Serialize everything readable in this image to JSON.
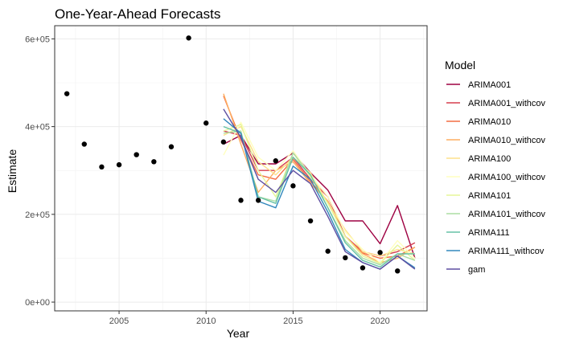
{
  "chart_data": {
    "type": "line",
    "title": "One-Year-Ahead Forecasts",
    "xlabel": "Year",
    "ylabel": "Estimate",
    "xlim": [
      2001.3,
      2022.7
    ],
    "ylim": [
      -20000,
      630000
    ],
    "x_ticks": [
      2005,
      2010,
      2015,
      2020
    ],
    "x_tick_labels": [
      "2005",
      "2010",
      "2015",
      "2020"
    ],
    "y_ticks": [
      0,
      200000,
      400000,
      600000
    ],
    "y_tick_labels": [
      "0e+00",
      "2e+05",
      "4e+05",
      "6e+05"
    ],
    "grid": true,
    "legend": {
      "title": "Model",
      "position": "right"
    },
    "observed": {
      "x": [
        2002,
        2003,
        2004,
        2005,
        2006,
        2007,
        2008,
        2009,
        2010,
        2011,
        2012,
        2013,
        2014,
        2015,
        2016,
        2017,
        2018,
        2019,
        2020,
        2021
      ],
      "y": [
        475000,
        360000,
        308000,
        313000,
        336000,
        320000,
        354000,
        602000,
        408000,
        365000,
        232000,
        232000,
        322000,
        265000,
        185000,
        116000,
        101000,
        78000,
        113000,
        71000
      ]
    },
    "series": [
      {
        "name": "ARIMA001",
        "color": "#9E0142",
        "x": [
          2011,
          2012,
          2013,
          2014,
          2015,
          2016,
          2017,
          2018,
          2019,
          2020,
          2021,
          2022
        ],
        "y": [
          360000,
          380000,
          315000,
          315000,
          340000,
          295000,
          255000,
          185000,
          185000,
          133000,
          220000,
          100000
        ]
      },
      {
        "name": "ARIMA001_withcov",
        "color": "#D53E4F",
        "x": [
          2011,
          2012,
          2013,
          2014,
          2015,
          2016,
          2017,
          2018,
          2019,
          2020,
          2021,
          2022
        ],
        "y": [
          390000,
          380000,
          300000,
          300000,
          330000,
          280000,
          240000,
          150000,
          115000,
          105000,
          115000,
          135000
        ]
      },
      {
        "name": "ARIMA010",
        "color": "#F46D43",
        "x": [
          2011,
          2012,
          2013,
          2014,
          2015,
          2016,
          2017,
          2018,
          2019,
          2020,
          2021,
          2022
        ],
        "y": [
          470000,
          370000,
          290000,
          280000,
          325000,
          275000,
          230000,
          150000,
          112000,
          100000,
          105000,
          125000
        ]
      },
      {
        "name": "ARIMA010_withcov",
        "color": "#FDAE61",
        "x": [
          2011,
          2012,
          2013,
          2014,
          2015,
          2016,
          2017,
          2018,
          2019,
          2020,
          2021,
          2022
        ],
        "y": [
          475000,
          360000,
          250000,
          300000,
          320000,
          270000,
          230000,
          150000,
          110000,
          90000,
          100000,
          125000
        ]
      },
      {
        "name": "ARIMA100",
        "color": "#FEE08B",
        "x": [
          2011,
          2012,
          2013,
          2014,
          2015,
          2016,
          2017,
          2018,
          2019,
          2020,
          2021,
          2022
        ],
        "y": [
          380000,
          400000,
          320000,
          290000,
          330000,
          295000,
          225000,
          165000,
          115000,
          105000,
          120000,
          110000
        ]
      },
      {
        "name": "ARIMA100_withcov",
        "color": "#FFFFBF",
        "x": [
          2011,
          2012,
          2013,
          2014,
          2015,
          2016,
          2017,
          2018,
          2019,
          2020,
          2021,
          2022
        ],
        "y": [
          335000,
          410000,
          330000,
          300000,
          345000,
          290000,
          240000,
          160000,
          120000,
          90000,
          140000,
          100000
        ]
      },
      {
        "name": "ARIMA101",
        "color": "#E6F598",
        "x": [
          2011,
          2012,
          2013,
          2014,
          2015,
          2016,
          2017,
          2018,
          2019,
          2020,
          2021,
          2022
        ],
        "y": [
          390000,
          405000,
          300000,
          240000,
          340000,
          285000,
          225000,
          150000,
          105000,
          88000,
          130000,
          95000
        ]
      },
      {
        "name": "ARIMA101_withcov",
        "color": "#ABDDA4",
        "x": [
          2011,
          2012,
          2013,
          2014,
          2015,
          2016,
          2017,
          2018,
          2019,
          2020,
          2021,
          2022
        ],
        "y": [
          385000,
          390000,
          240000,
          230000,
          340000,
          290000,
          215000,
          140000,
          100000,
          85000,
          110000,
          95000
        ]
      },
      {
        "name": "ARIMA111",
        "color": "#66C2A5",
        "x": [
          2011,
          2012,
          2013,
          2014,
          2015,
          2016,
          2017,
          2018,
          2019,
          2020,
          2021,
          2022
        ],
        "y": [
          400000,
          385000,
          240000,
          225000,
          330000,
          290000,
          215000,
          135000,
          95000,
          80000,
          110000,
          110000
        ]
      },
      {
        "name": "ARIMA111_withcov",
        "color": "#3288BD",
        "x": [
          2011,
          2012,
          2013,
          2014,
          2015,
          2016,
          2017,
          2018,
          2019,
          2020,
          2021,
          2022
        ],
        "y": [
          418000,
          385000,
          230000,
          215000,
          310000,
          280000,
          205000,
          120000,
          90000,
          75000,
          105000,
          78000
        ]
      },
      {
        "name": "gam",
        "color": "#5E4FA2",
        "x": [
          2011,
          2012,
          2013,
          2014,
          2015,
          2016,
          2017,
          2018,
          2019,
          2020,
          2021,
          2022
        ],
        "y": [
          440000,
          375000,
          280000,
          250000,
          300000,
          270000,
          195000,
          115000,
          90000,
          75000,
          105000,
          75000
        ]
      }
    ]
  }
}
